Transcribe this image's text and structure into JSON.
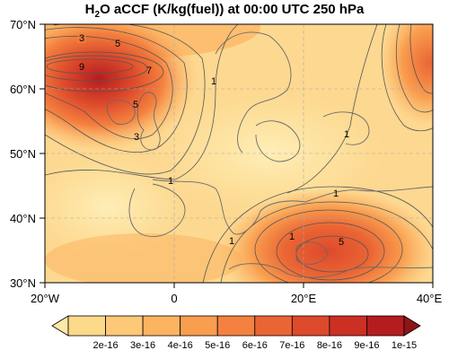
{
  "title": {
    "prefix": "H",
    "subscript": "2",
    "rest": "O aCCF (K/kg(fuel)) at 00:00 UTC 250 hPa"
  },
  "map": {
    "lon_range": [
      -20,
      40
    ],
    "lat_range": [
      30,
      70
    ],
    "lat_ticks": [
      "70°N",
      "60°N",
      "50°N",
      "40°N",
      "30°N"
    ],
    "lon_ticks": [
      "20°W",
      "0",
      "20°E",
      "40°E"
    ],
    "gridlines": true,
    "contour_labels": [
      "3",
      "5",
      "9",
      "7",
      "1",
      "5",
      "3",
      "1",
      "1",
      "1",
      "1",
      "1",
      "5"
    ]
  },
  "colorbar": {
    "labels": [
      "2e-16",
      "3e-16",
      "4e-16",
      "5e-16",
      "6e-16",
      "7e-16",
      "8e-16",
      "9e-16",
      "1e-15"
    ],
    "colors": [
      "#fde9a6",
      "#fdd98a",
      "#fdc878",
      "#fcb461",
      "#f99d4f",
      "#f4813f",
      "#ea6534",
      "#dd4a2b",
      "#cc3023",
      "#b51c1f",
      "#8e1418"
    ]
  },
  "colors": {
    "background_field": "#fdd890",
    "high_center": "#cc3023",
    "contour_line": "#555555",
    "coastline": "#666666"
  }
}
